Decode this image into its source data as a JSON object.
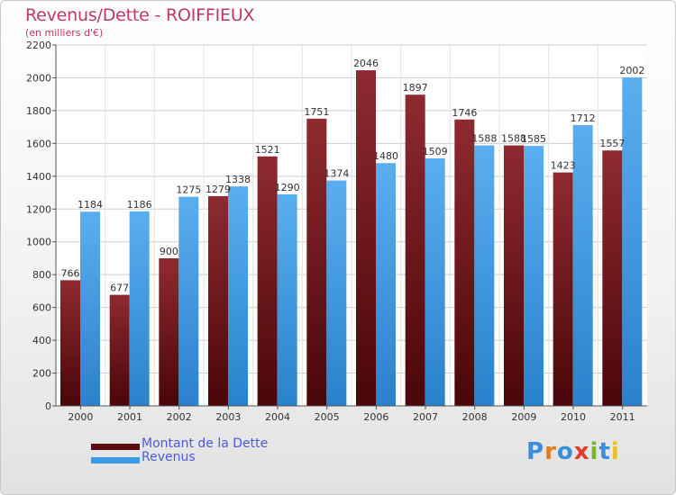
{
  "title": "Revenus/Dette - ROIFFIEUX",
  "subtitle": "(en milliers d'€)",
  "legend": {
    "items": [
      {
        "label": "Montant de la Dette",
        "color": "#7a1a1f"
      },
      {
        "label": "Revenus",
        "color": "#3c9be6"
      }
    ]
  },
  "logo": {
    "text": "Proxiti",
    "colors": [
      "#3a8fd8",
      "#e27b20",
      "#3a8fd8",
      "#e63b2b",
      "#76b82a",
      "#3a8fd8",
      "#f0c020"
    ]
  },
  "chart_data": {
    "type": "bar",
    "title": "Revenus/Dette - ROIFFIEUX",
    "subtitle": "(en milliers d'€)",
    "categories": [
      "2000",
      "2001",
      "2002",
      "2003",
      "2004",
      "2005",
      "2006",
      "2007",
      "2008",
      "2009",
      "2010",
      "2011"
    ],
    "series": [
      {
        "name": "Montant de la Dette",
        "color": "#7a1a1f",
        "values": [
          766,
          677,
          900,
          1279,
          1521,
          1751,
          2046,
          1897,
          1746,
          1588,
          1423,
          1557
        ],
        "labels": [
          "766",
          "677",
          "900",
          "1279",
          "1521",
          "1751",
          "2046",
          "1897",
          "1746",
          "1588",
          "1423",
          "1557"
        ]
      },
      {
        "name": "Revenus",
        "color": "#3c9be6",
        "values": [
          1184,
          1186,
          1275,
          1338,
          1290,
          1374,
          1480,
          1509,
          1588,
          1585,
          1712,
          2002
        ],
        "labels": [
          "1184",
          "1186",
          "1275",
          "1338",
          "1290",
          "1374",
          "1480",
          "1509",
          "1588",
          "1585",
          "1712",
          "2002"
        ]
      }
    ],
    "ylim": [
      0,
      2200
    ],
    "yticks": [
      0,
      200,
      400,
      600,
      800,
      1000,
      1200,
      1400,
      1600,
      1800,
      2000,
      2200
    ],
    "grid": true,
    "legend_position": "bottom-left"
  }
}
